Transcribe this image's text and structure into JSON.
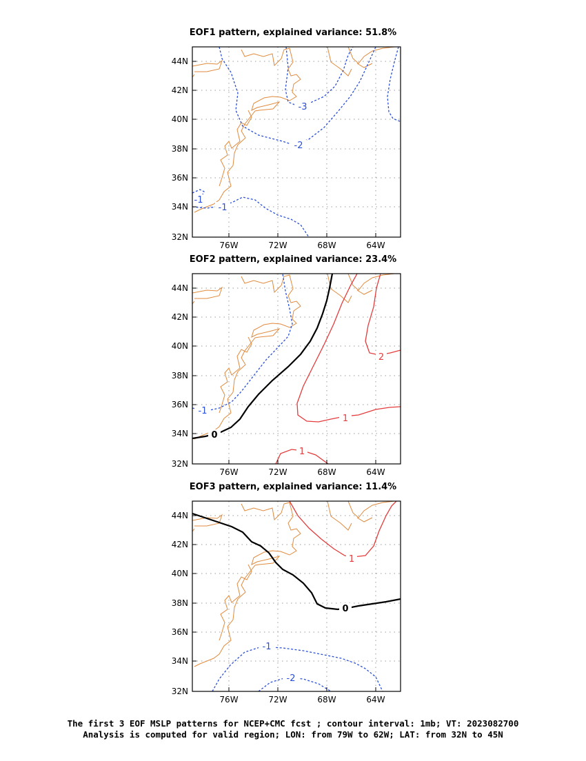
{
  "panels": [
    {
      "title": "EOF1 pattern, explained variance: 51.8%",
      "contour_labels": [
        "-3",
        "-2",
        "-1",
        "-1"
      ]
    },
    {
      "title": "EOF2 pattern, explained variance: 23.4%",
      "contour_labels": [
        "0",
        "-1",
        "1",
        "2",
        "1"
      ]
    },
    {
      "title": "EOF3 pattern, explained variance: 11.4%",
      "contour_labels": [
        "0",
        "1",
        "-1",
        "-2"
      ]
    }
  ],
  "lat_labels": [
    "44N",
    "42N",
    "40N",
    "38N",
    "36N",
    "34N",
    "32N"
  ],
  "lon_labels": [
    "76W",
    "72W",
    "68W",
    "64W"
  ],
  "colors": {
    "coastline": "#e08a3c",
    "negative": "#2a4fd6",
    "positive": "#e43b3b",
    "zero": "#000000",
    "grid": "#999999"
  },
  "caption": {
    "line1": "The first 3 EOF MSLP patterns for NCEP+CMC fcst ; contour interval: 1mb; VT: 2023082700",
    "line2": "Analysis is computed for valid region; LON: from 79W to 62W; LAT: from 32N to 45N"
  }
}
